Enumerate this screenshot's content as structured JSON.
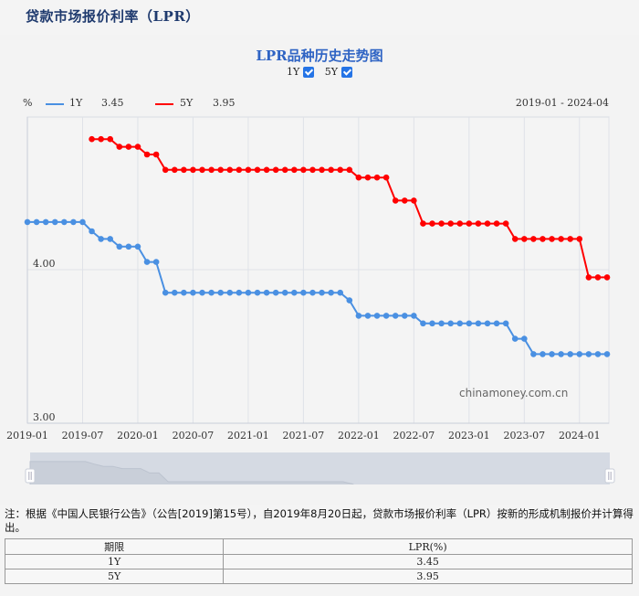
{
  "page": {
    "title": "贷款市场报价利率（LPR）"
  },
  "chart": {
    "title": "LPR品种历史走势图",
    "toggles": [
      {
        "label": "1Y",
        "checked": true
      },
      {
        "label": "5Y",
        "checked": true
      }
    ],
    "unit_label": "%",
    "legend": [
      {
        "name": "1Y",
        "value": "3.45",
        "color": "#4a90e2"
      },
      {
        "name": "5Y",
        "value": "3.95",
        "color": "#ff0000"
      }
    ],
    "date_range": "2019-01 - 2024-04",
    "watermark": "chinamoney.com.cn",
    "zoom_slider": {
      "left_handle": "||",
      "right_handle": "||"
    }
  },
  "chart_data": {
    "type": "line",
    "title": "LPR品种历史走势图",
    "xlabel": "",
    "ylabel": "%",
    "ylim": [
      3.0,
      5.0
    ],
    "yticks": [
      "4.00",
      "3.00"
    ],
    "xticks": [
      "2019-01",
      "2019-07",
      "2020-01",
      "2020-07",
      "2021-01",
      "2021-07",
      "2022-01",
      "2022-07",
      "2023-01",
      "2023-07",
      "2024-01"
    ],
    "grid": true,
    "legend_position": "top-left",
    "x": [
      "2019-01",
      "2019-02",
      "2019-03",
      "2019-04",
      "2019-05",
      "2019-06",
      "2019-07",
      "2019-08",
      "2019-09",
      "2019-10",
      "2019-11",
      "2019-12",
      "2020-01",
      "2020-02",
      "2020-03",
      "2020-04",
      "2020-05",
      "2020-06",
      "2020-07",
      "2020-08",
      "2020-09",
      "2020-10",
      "2020-11",
      "2020-12",
      "2021-01",
      "2021-02",
      "2021-03",
      "2021-04",
      "2021-05",
      "2021-06",
      "2021-07",
      "2021-08",
      "2021-09",
      "2021-10",
      "2021-11",
      "2021-12",
      "2022-01",
      "2022-02",
      "2022-03",
      "2022-04",
      "2022-05",
      "2022-06",
      "2022-07",
      "2022-08",
      "2022-09",
      "2022-10",
      "2022-11",
      "2022-12",
      "2023-01",
      "2023-02",
      "2023-03",
      "2023-04",
      "2023-05",
      "2023-06",
      "2023-07",
      "2023-08",
      "2023-09",
      "2023-10",
      "2023-11",
      "2023-12",
      "2024-01",
      "2024-02",
      "2024-03",
      "2024-04"
    ],
    "series": [
      {
        "name": "1Y",
        "color": "#4a90e2",
        "values": [
          4.31,
          4.31,
          4.31,
          4.31,
          4.31,
          4.31,
          4.31,
          4.25,
          4.2,
          4.2,
          4.15,
          4.15,
          4.15,
          4.05,
          4.05,
          3.85,
          3.85,
          3.85,
          3.85,
          3.85,
          3.85,
          3.85,
          3.85,
          3.85,
          3.85,
          3.85,
          3.85,
          3.85,
          3.85,
          3.85,
          3.85,
          3.85,
          3.85,
          3.85,
          3.85,
          3.8,
          3.7,
          3.7,
          3.7,
          3.7,
          3.7,
          3.7,
          3.7,
          3.65,
          3.65,
          3.65,
          3.65,
          3.65,
          3.65,
          3.65,
          3.65,
          3.65,
          3.65,
          3.55,
          3.55,
          3.45,
          3.45,
          3.45,
          3.45,
          3.45,
          3.45,
          3.45,
          3.45,
          3.45
        ]
      },
      {
        "name": "5Y",
        "color": "#ff0000",
        "values": [
          null,
          null,
          null,
          null,
          null,
          null,
          null,
          4.85,
          4.85,
          4.85,
          4.8,
          4.8,
          4.8,
          4.75,
          4.75,
          4.65,
          4.65,
          4.65,
          4.65,
          4.65,
          4.65,
          4.65,
          4.65,
          4.65,
          4.65,
          4.65,
          4.65,
          4.65,
          4.65,
          4.65,
          4.65,
          4.65,
          4.65,
          4.65,
          4.65,
          4.65,
          4.6,
          4.6,
          4.6,
          4.6,
          4.45,
          4.45,
          4.45,
          4.3,
          4.3,
          4.3,
          4.3,
          4.3,
          4.3,
          4.3,
          4.3,
          4.3,
          4.3,
          4.2,
          4.2,
          4.2,
          4.2,
          4.2,
          4.2,
          4.2,
          4.2,
          3.95,
          3.95,
          3.95
        ]
      }
    ]
  },
  "note": "注：根据《中国人民银行公告》（公告[2019]第15号），自2019年8月20日起，贷款市场报价利率（LPR）按新的形成机制报价并计算得出。",
  "table": {
    "headers": [
      "期限",
      "LPR(%)"
    ],
    "rows": [
      [
        "1Y",
        "3.45"
      ],
      [
        "5Y",
        "3.95"
      ]
    ]
  }
}
